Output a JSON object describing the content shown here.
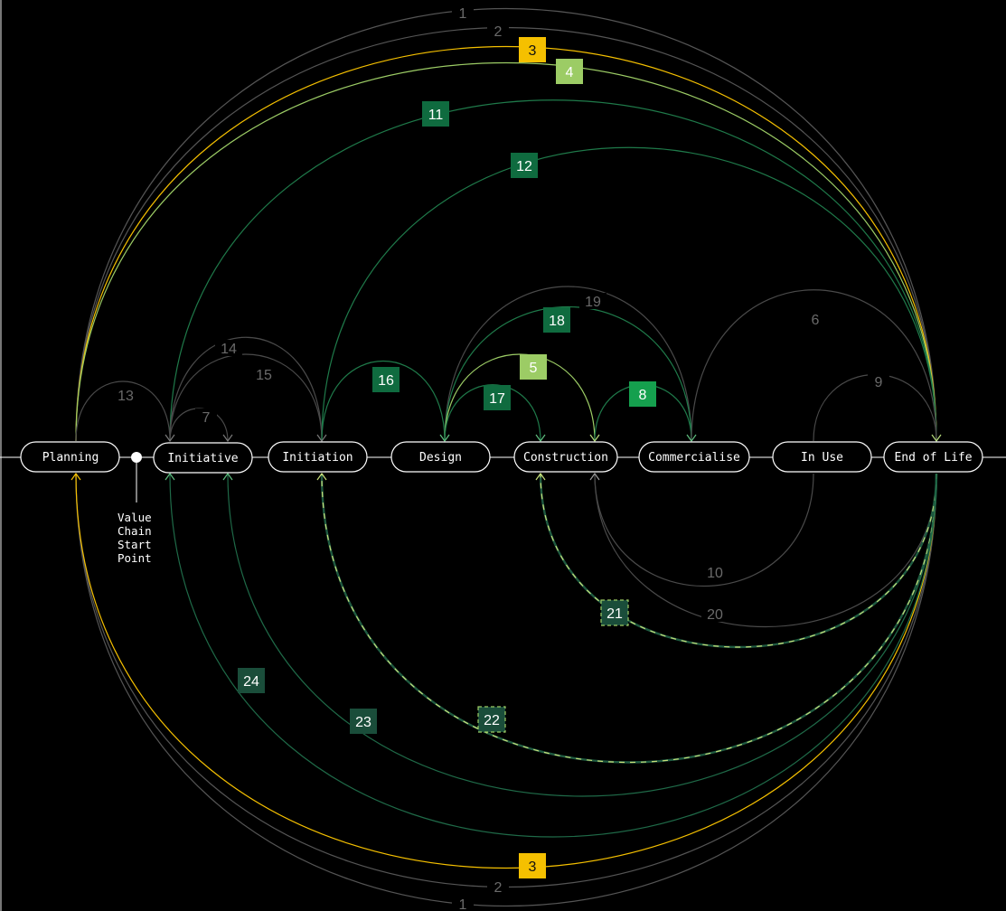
{
  "colors": {
    "background": "#000000",
    "stage_stroke": "#ffffff",
    "gray_line": "#5a5a5a",
    "gray_label": "#6a6a6a",
    "yellow": "#f5c000",
    "light_green": "#9ccc65",
    "mid_green": "#2a8a55",
    "dark_green": "#0f6b3f",
    "bright_green": "#1ea85a",
    "teal_box": "#1a4d3a"
  },
  "stages": [
    {
      "id": "planning",
      "label": "Planning"
    },
    {
      "id": "initiative",
      "label": "Initiative"
    },
    {
      "id": "initiation",
      "label": "Initiation"
    },
    {
      "id": "design",
      "label": "Design"
    },
    {
      "id": "construction",
      "label": "Construction"
    },
    {
      "id": "commercialise",
      "label": "Commercialise"
    },
    {
      "id": "in_use",
      "label": "In Use"
    },
    {
      "id": "end_of_life",
      "label": "End of Life"
    }
  ],
  "start_point": {
    "lines": [
      "Value",
      "Chain",
      "Start",
      "Point"
    ]
  },
  "links": [
    {
      "number": "1",
      "from": "planning",
      "to": "end_of_life",
      "style": "gray",
      "side": "top"
    },
    {
      "number": "1",
      "from": "planning",
      "to": "end_of_life",
      "style": "gray",
      "side": "bottom"
    },
    {
      "number": "2",
      "from": "planning",
      "to": "end_of_life",
      "style": "gray",
      "side": "top"
    },
    {
      "number": "2",
      "from": "planning",
      "to": "end_of_life",
      "style": "gray",
      "side": "bottom"
    },
    {
      "number": "3",
      "from": "planning",
      "to": "end_of_life",
      "style": "yellow",
      "side": "top"
    },
    {
      "number": "3",
      "from": "end_of_life",
      "to": "planning",
      "style": "yellow",
      "side": "bottom"
    },
    {
      "number": "4",
      "from": "planning",
      "to": "end_of_life",
      "style": "light_green",
      "side": "top"
    },
    {
      "number": "5",
      "from": "design",
      "to": "construction",
      "style": "light_green",
      "side": "top"
    },
    {
      "number": "6",
      "from": "commercialise",
      "to": "end_of_life",
      "style": "gray",
      "side": "top"
    },
    {
      "number": "7",
      "from": "initiative",
      "to": "initiative",
      "style": "gray",
      "side": "top"
    },
    {
      "number": "8",
      "from": "construction",
      "to": "commercialise",
      "style": "bright_green",
      "side": "top"
    },
    {
      "number": "9",
      "from": "in_use",
      "to": "end_of_life",
      "style": "gray",
      "side": "top"
    },
    {
      "number": "10",
      "from": "in_use",
      "to": "construction",
      "style": "gray",
      "side": "bottom"
    },
    {
      "number": "11",
      "from": "initiative",
      "to": "end_of_life",
      "style": "dark_green",
      "side": "top"
    },
    {
      "number": "12",
      "from": "initiation",
      "to": "end_of_life",
      "style": "dark_green",
      "side": "top"
    },
    {
      "number": "13",
      "from": "planning",
      "to": "initiative",
      "style": "gray",
      "side": "top"
    },
    {
      "number": "14",
      "from": "initiative",
      "to": "initiation",
      "style": "gray",
      "side": "top"
    },
    {
      "number": "15",
      "from": "initiative",
      "to": "initiation",
      "style": "gray",
      "side": "top"
    },
    {
      "number": "16",
      "from": "initiation",
      "to": "design",
      "style": "dark_green",
      "side": "top"
    },
    {
      "number": "17",
      "from": "design",
      "to": "construction",
      "style": "dark_green",
      "side": "top"
    },
    {
      "number": "18",
      "from": "design",
      "to": "commercialise",
      "style": "dark_green",
      "side": "top"
    },
    {
      "number": "19",
      "from": "design",
      "to": "commercialise",
      "style": "gray",
      "side": "top"
    },
    {
      "number": "20",
      "from": "end_of_life",
      "to": "construction",
      "style": "gray",
      "side": "bottom"
    },
    {
      "number": "21",
      "from": "end_of_life",
      "to": "construction",
      "style": "dashed",
      "side": "bottom"
    },
    {
      "number": "22",
      "from": "end_of_life",
      "to": "initiation",
      "style": "dashed",
      "side": "bottom"
    },
    {
      "number": "23",
      "from": "end_of_life",
      "to": "initiative",
      "style": "teal",
      "side": "bottom"
    },
    {
      "number": "24",
      "from": "end_of_life",
      "to": "initiative",
      "style": "teal",
      "side": "bottom"
    }
  ]
}
